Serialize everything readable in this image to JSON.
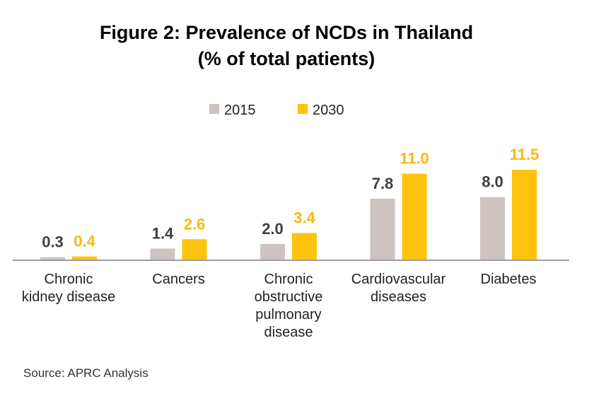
{
  "chart_data": {
    "type": "bar",
    "title": "Figure 2: Prevalence of NCDs in Thailand",
    "subtitle": "(% of total patients)",
    "categories": [
      [
        "Chronic",
        "kidney disease"
      ],
      [
        "Cancers"
      ],
      [
        "Chronic",
        "obstructive",
        "pulmonary",
        "disease"
      ],
      [
        "Cardiovascular",
        "diseases"
      ],
      [
        "Diabetes"
      ]
    ],
    "series": [
      {
        "name": "2015",
        "color": "#cdc3c0",
        "label_color": "#3f3f3f",
        "values": [
          0.3,
          1.4,
          2.0,
          7.8,
          8.0
        ],
        "labels": [
          "0.3",
          "1.4",
          "2.0",
          "7.8",
          "8.0"
        ]
      },
      {
        "name": "2030",
        "color": "#ffc20e",
        "label_color": "#f9b811",
        "values": [
          0.4,
          2.6,
          3.4,
          11.0,
          11.5
        ],
        "labels": [
          "0.4",
          "2.6",
          "3.4",
          "11.0",
          "11.5"
        ]
      }
    ],
    "xlabel": "",
    "ylabel": "",
    "ylim": [
      0,
      11.5
    ],
    "grid": false,
    "legend": "top-center"
  },
  "source": "Source: APRC Analysis"
}
